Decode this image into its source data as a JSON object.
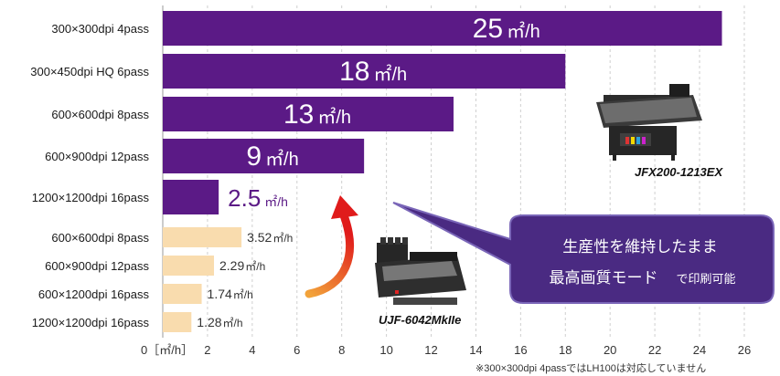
{
  "chart_data": {
    "type": "bar",
    "orientation": "horizontal",
    "xlim": [
      0,
      26
    ],
    "x_ticks": [
      "0［㎡/h］",
      "2",
      "4",
      "6",
      "8",
      "10",
      "12",
      "14",
      "16",
      "18",
      "20",
      "22",
      "24",
      "26"
    ],
    "grid": "vertical-dashed",
    "categories": [
      "300×300dpi 4pass",
      "300×450dpi HQ 6pass",
      "600×600dpi 8pass",
      "600×900dpi 12pass",
      "1200×1200dpi 16pass",
      "600×600dpi 8pass",
      "600×900dpi 12pass",
      "600×1200dpi 16pass",
      "1200×1200dpi 16pass"
    ],
    "values": [
      25,
      18,
      13,
      9,
      2.5,
      3.52,
      2.29,
      1.74,
      1.28
    ],
    "value_labels": [
      "25",
      "18",
      "13",
      "9",
      "2.5",
      "3.52",
      "2.29",
      "1.74",
      "1.28"
    ],
    "unit": "㎡/h",
    "series_colors": [
      "#5b1a86",
      "#5b1a86",
      "#5b1a86",
      "#5b1a86",
      "#5b1a86",
      "#f9dcae",
      "#f9dcae",
      "#f9dcae",
      "#f9dcae"
    ],
    "annotations": {
      "callout_line1": "生産性を維持したまま",
      "callout_line2_main": "最高画質モード",
      "callout_line2_small": "で印刷可能",
      "model_top": "JFX200-1213EX",
      "model_bottom": "UJF-6042MkIIe",
      "footnote": "※300×300dpi 4passではLH100は対応していません"
    }
  },
  "colors": {
    "purple": "#5b1a86",
    "beige": "#f9dcae",
    "callout": "#4a2a82",
    "arrow_start": "#f2a33a",
    "arrow_end": "#e01b1b"
  }
}
